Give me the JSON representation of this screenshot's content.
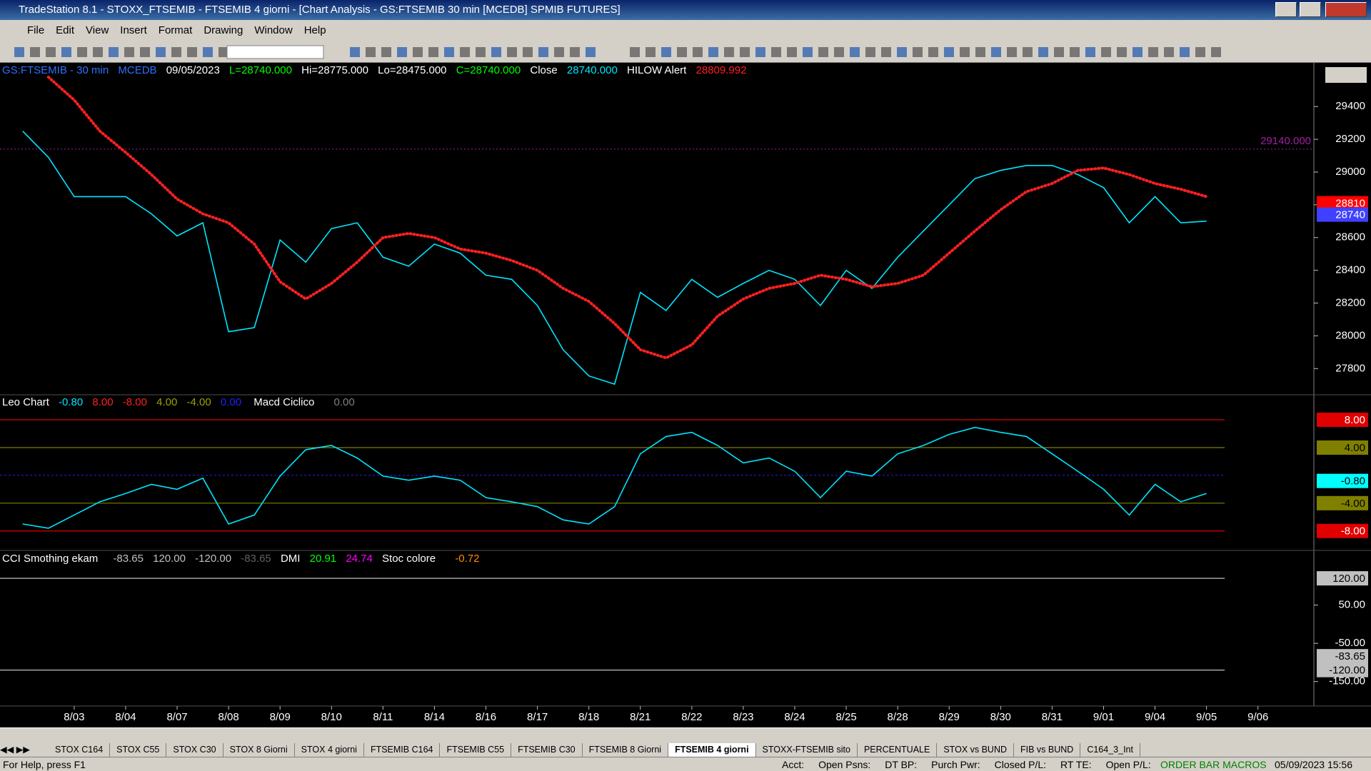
{
  "window": {
    "title": "TradeStation 8.1 - STOXX_FTSEMIB - FTSEMIB  4 giorni - [Chart Analysis - GS:FTSEMIB  30 min  [MCEDB] SPMIB FUTURES]"
  },
  "menu": [
    "File",
    "Edit",
    "View",
    "Insert",
    "Format",
    "Drawing",
    "Window",
    "Help"
  ],
  "chart_data": [
    {
      "type": "line",
      "header": {
        "symbol": "GS:FTSEMIB - 30 min",
        "data_feed": "MCEDB",
        "date": "09/05/2023",
        "last": "L=28740.000",
        "high": "Hi=28775.000",
        "low": "Lo=28475.000",
        "close_label": "C=28740.000",
        "close_value": "28740.000",
        "hilow_value": "28809.992"
      },
      "categories": [
        null,
        null,
        "8/03",
        null,
        "8/04",
        null,
        "8/07",
        null,
        "8/08",
        null,
        "8/09",
        null,
        "8/10",
        null,
        "8/11",
        null,
        "8/14",
        null,
        "8/16",
        null,
        "8/17",
        null,
        "8/18",
        null,
        "8/21",
        null,
        "8/22",
        null,
        "8/23",
        null,
        "8/24",
        null,
        "8/25",
        null,
        "8/28",
        null,
        "8/29",
        null,
        "8/30",
        null,
        "8/31",
        null,
        "9/01",
        null,
        "9/04",
        null,
        "9/05",
        null,
        "9/06"
      ],
      "series": [
        {
          "name": "Close",
          "color": "#00e5ff",
          "values": [
            29250,
            29090,
            28850,
            28850,
            28850,
            28745,
            28610,
            28690,
            28025,
            28050,
            28585,
            28450,
            28655,
            28690,
            28480,
            28425,
            28560,
            28505,
            28370,
            28345,
            28185,
            27915,
            27755,
            27705,
            28265,
            28155,
            28345,
            28235,
            28320,
            28400,
            28345,
            28185,
            28400,
            28290,
            28480,
            28640,
            28800,
            28960,
            29010,
            29040,
            29040,
            28985,
            28905,
            28690,
            28850,
            28690,
            28700,
            null,
            null
          ]
        },
        {
          "name": "HILOW Alert",
          "color": "#ff2020",
          "values": [
            null,
            29580,
            29440,
            29250,
            29120,
            28985,
            28835,
            28745,
            28690,
            28560,
            28330,
            28225,
            28320,
            28450,
            28600,
            28625,
            28600,
            28530,
            28505,
            28460,
            28400,
            28290,
            28210,
            28075,
            27915,
            27865,
            27945,
            28120,
            28225,
            28290,
            28320,
            28370,
            28345,
            28300,
            28320,
            28370,
            28505,
            28640,
            28770,
            28880,
            28930,
            29010,
            29025,
            28985,
            28930,
            28895,
            28850,
            null,
            null
          ]
        }
      ],
      "ylim": [
        27640,
        29667
      ],
      "yticks": [
        27800,
        28000,
        28200,
        28400,
        28600,
        28800,
        29000,
        29200,
        29400
      ],
      "reference_line": {
        "value": 29140,
        "label": "29140.000",
        "color": "#a020a0"
      },
      "price_markers": [
        {
          "value": 28810,
          "color": "#ff0000"
        },
        {
          "value": 28740,
          "color": "#4040ff"
        }
      ]
    },
    {
      "type": "line",
      "series": [
        {
          "name": "Leo Chart",
          "color": "#00e5ff",
          "values": [
            -7.0,
            -7.6,
            -5.7,
            -3.8,
            -2.6,
            -1.3,
            -2.0,
            -0.4,
            -7.0,
            -5.7,
            -0.1,
            3.7,
            4.3,
            2.5,
            -0.1,
            -0.7,
            -0.1,
            -0.7,
            -3.2,
            -3.8,
            -4.5,
            -6.4,
            -7.0,
            -4.5,
            3.1,
            5.6,
            6.2,
            4.3,
            1.8,
            2.5,
            0.6,
            -3.2,
            0.6,
            -0.1,
            3.1,
            4.3,
            5.9,
            6.9,
            6.2,
            5.6,
            3.1,
            0.6,
            -2.0,
            -5.7,
            -1.3,
            -3.8,
            -2.6,
            null,
            null
          ]
        }
      ],
      "ylim": [
        -10.8,
        11.6
      ],
      "yticks": [
        {
          "value": 8,
          "label": "8.00"
        },
        {
          "value": 4,
          "label": "4.00"
        },
        {
          "value": -4,
          "label": "-4.00"
        },
        {
          "value": -8,
          "label": "-8.00"
        }
      ],
      "level_colors": [
        "#e00000",
        "#808000",
        "#808000",
        "#e00000"
      ],
      "zero_line": {
        "value": 0,
        "label": "0.00",
        "color": "#2020ff"
      },
      "last_value": {
        "value": -0.8,
        "label": "-0.80",
        "color": "#00ffff"
      },
      "macd_title": "Macd Ciclico",
      "macd_value": "0.00"
    },
    {
      "type": "line",
      "title": "CCI Smothing ekam",
      "ylim": [
        -214,
        193
      ],
      "yticks": [
        {
          "value": 120,
          "label": "120.00"
        },
        {
          "value": 50,
          "label": "50.00"
        },
        {
          "value": -50,
          "label": "-50.00"
        },
        {
          "value": -120,
          "label": "-120.00"
        },
        {
          "value": -150,
          "label": "-150.00"
        }
      ],
      "level_colors": [
        "#c0c0c0",
        null,
        null,
        "#c0c0c0",
        null
      ],
      "last_value": {
        "value": -83.65,
        "label": "-83.65",
        "color": "#c0c0c0"
      },
      "dmi_title": "DMI",
      "dmi_values": [
        "20.91",
        "24.74"
      ],
      "stoc_title": "Stoc colore",
      "stoc_value": "-0.72"
    }
  ],
  "tabs": [
    "STOX C164",
    "STOX C55",
    "STOX  C30",
    "STOX  8 Giorni",
    "STOX 4 giorni",
    "FTSEMIB C164",
    "FTSEMIB C55",
    "FTSEMIB C30",
    "FTSEMIB  8 Giorni",
    "FTSEMIB  4 giorni",
    "STOXX-FTSEMIB sito",
    "PERCENTUALE",
    "STOX vs BUND",
    "FIB vs BUND",
    "C164_3_Int"
  ],
  "status": {
    "help": "For Help, press F1",
    "fields": [
      "Acct:",
      "Open Psns:",
      "DT BP:",
      "Purch Pwr:",
      "Closed P/L:",
      "RT TE:",
      "Open P/L:"
    ],
    "order_bar": "ORDER BAR",
    "macros": "MACROS",
    "datetime": "05/09/2023 15:56"
  }
}
